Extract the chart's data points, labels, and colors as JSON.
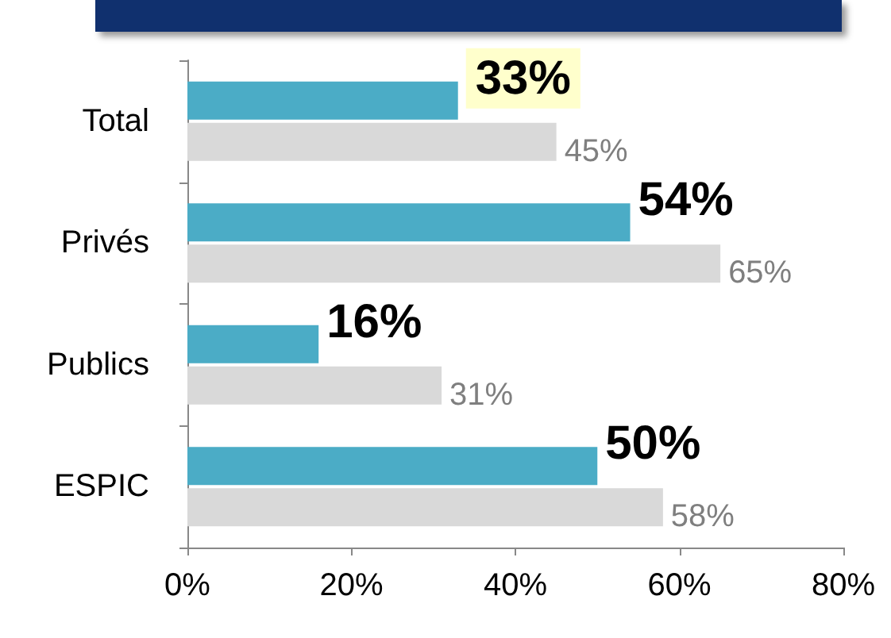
{
  "chart_data": {
    "type": "bar",
    "orientation": "horizontal",
    "categories": [
      "Total",
      "Privés",
      "Publics",
      "ESPIC"
    ],
    "series": [
      {
        "color": "#4bacc6",
        "values": [
          33,
          54,
          16,
          50
        ],
        "value_labels": [
          "33%",
          "54%",
          "16%",
          "50%"
        ]
      },
      {
        "color": "#d9d9d9",
        "values": [
          45,
          65,
          31,
          58
        ],
        "value_labels": [
          "45%",
          "65%",
          "31%",
          "58%"
        ]
      }
    ],
    "xlim": [
      0,
      80
    ],
    "xticks": [
      {
        "value": 0,
        "label": "0%"
      },
      {
        "value": 20,
        "label": "20%"
      },
      {
        "value": 40,
        "label": "40%"
      },
      {
        "value": 60,
        "label": "60%"
      },
      {
        "value": 80,
        "label": "80%"
      }
    ],
    "grid": false
  }
}
